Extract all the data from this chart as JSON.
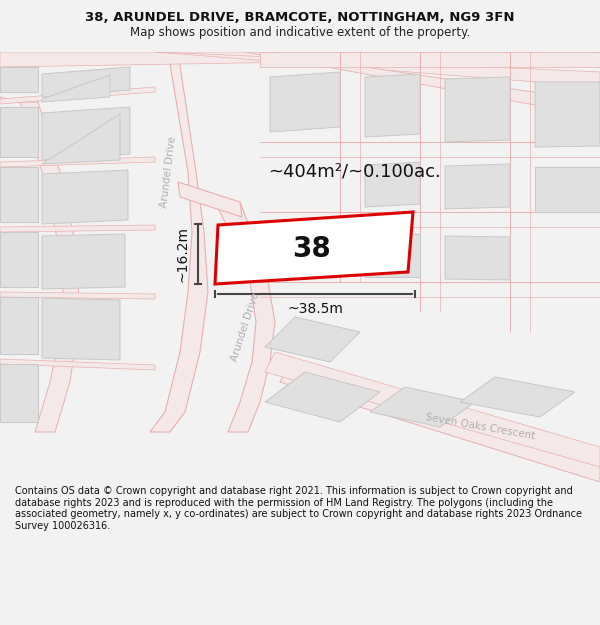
{
  "title_line1": "38, ARUNDEL DRIVE, BRAMCOTE, NOTTINGHAM, NG9 3FN",
  "title_line2": "Map shows position and indicative extent of the property.",
  "footer_text": "Contains OS data © Crown copyright and database right 2021. This information is subject to Crown copyright and database rights 2023 and is reproduced with the permission of HM Land Registry. The polygons (including the associated geometry, namely x, y co-ordinates) are subject to Crown copyright and database rights 2023 Ordnance Survey 100026316.",
  "bg_color": "#f2f2f2",
  "map_bg": "#ffffff",
  "road_fill": "#f5e8e8",
  "road_line": "#e8b0b0",
  "block_color": "#e0e0e0",
  "block_border": "#c8c8c8",
  "highlight_color": "#dd0000",
  "dim_color": "#444444",
  "street_text_color": "#b0b0b0",
  "area_label": "~404m²/~0.100ac.",
  "number_label": "38",
  "dim_width": "~38.5m",
  "dim_height": "~16.2m",
  "street_name_arundel_upper": "Arundel Drive",
  "street_name_arundel_lower": "Arundel Drive",
  "street_name_soc": "Seven Oaks Crescent"
}
